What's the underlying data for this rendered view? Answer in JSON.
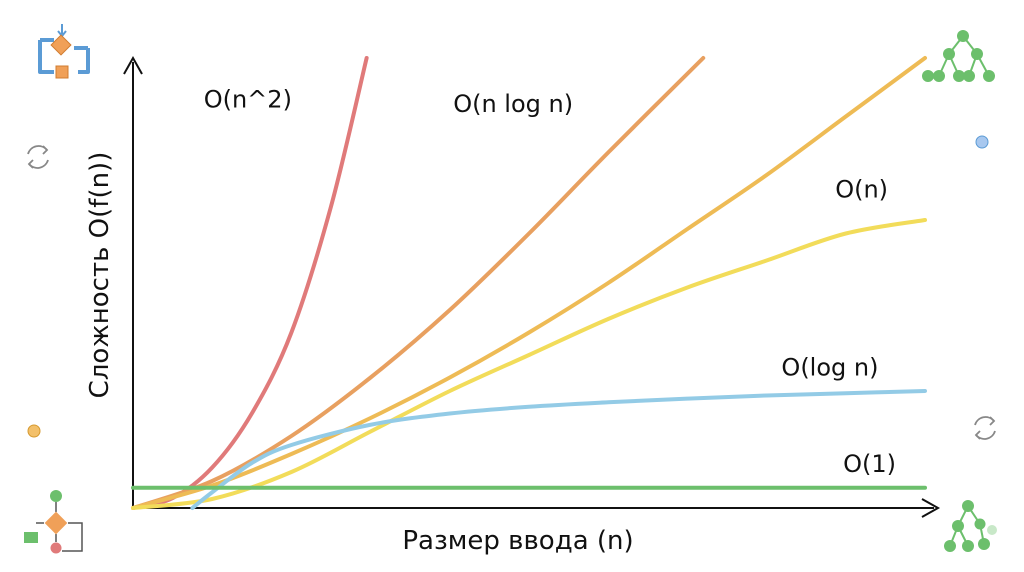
{
  "chart_data": {
    "type": "line",
    "xlabel": "Размер ввода (n)",
    "ylabel": "Сложность O(f(n))",
    "xlim": [
      0,
      10
    ],
    "ylim": [
      0,
      10
    ],
    "grid": false,
    "series": [
      {
        "name": "O(n^2)",
        "color": "#e07a7a",
        "x": [
          0,
          0.5,
          1,
          1.5,
          2,
          2.5,
          2.95
        ],
        "y": [
          0,
          0.22,
          0.9,
          2.1,
          3.9,
          6.7,
          10
        ]
      },
      {
        "name": "O(n log n)",
        "color": "#e8a060",
        "x": [
          0,
          1,
          2,
          3,
          4,
          5,
          6,
          7.2
        ],
        "y": [
          0,
          0.6,
          1.6,
          2.9,
          4.4,
          6.1,
          7.9,
          10
        ]
      },
      {
        "name": "",
        "color": "#eebb55",
        "x": [
          0,
          1,
          2,
          3,
          4,
          5,
          6,
          7,
          8,
          9,
          10
        ],
        "y": [
          0,
          0.5,
          1.2,
          2.0,
          2.9,
          3.9,
          5.0,
          6.2,
          7.4,
          8.7,
          10
        ]
      },
      {
        "name": "O(n)",
        "color": "#f2dc5a",
        "x": [
          0,
          1,
          2,
          3,
          4,
          5,
          6,
          7,
          8,
          9,
          10
        ],
        "y": [
          0,
          0.2,
          0.8,
          1.7,
          2.6,
          3.4,
          4.2,
          4.9,
          5.5,
          6.1,
          6.4
        ]
      },
      {
        "name": "O(log n)",
        "color": "#93cbe6",
        "x": [
          0.75,
          1,
          1.5,
          2,
          3,
          4,
          5,
          6,
          7,
          8,
          9,
          10
        ],
        "y": [
          0,
          0.35,
          1.0,
          1.4,
          1.85,
          2.1,
          2.25,
          2.35,
          2.43,
          2.5,
          2.55,
          2.6
        ]
      },
      {
        "name": "O(1)",
        "color": "#6cbf6c",
        "x": [
          0,
          10
        ],
        "y": [
          0.45,
          0.45
        ]
      }
    ],
    "labels": [
      {
        "text": "O(n^2)",
        "x": 1.45,
        "y": 8.9
      },
      {
        "text": "O(n log n)",
        "x": 4.8,
        "y": 8.8
      },
      {
        "text": "O(n)",
        "x": 9.2,
        "y": 6.9
      },
      {
        "text": "O(log n)",
        "x": 8.8,
        "y": 2.95
      },
      {
        "text": "O(1)",
        "x": 9.3,
        "y": 0.8
      }
    ]
  },
  "icons": [
    {
      "name": "flowchart-loop-icon"
    },
    {
      "name": "tree-icon"
    },
    {
      "name": "refresh-icon"
    },
    {
      "name": "flowchart-icon"
    },
    {
      "name": "tree-small-icon"
    }
  ],
  "colors": {
    "icon_blue": "#5b9bd5",
    "icon_orange": "#f0a058",
    "icon_green": "#6cbf6c",
    "icon_red": "#e07a7a"
  }
}
